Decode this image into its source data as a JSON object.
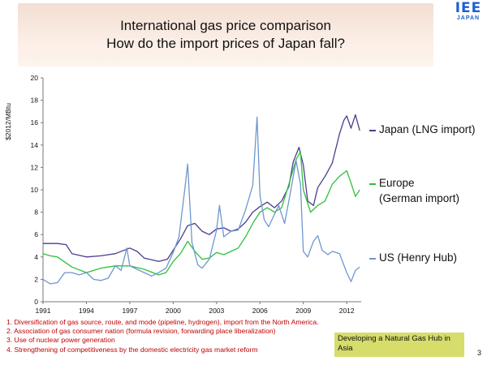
{
  "slide": {
    "title_line1": "International gas price comparison",
    "title_line2": "How do the import prices of Japan fall?",
    "logo_big": "IEE",
    "logo_small": "JAPAN",
    "notes": [
      "1. Diversification of gas source, route, and mode (pipeline, hydrogen), import from the North America.",
      "2. Association of gas consumer nation (formula revision, forwarding place liberalization)",
      "3. Use of nuclear power generation",
      "4. Strengthening of competitiveness by the domestic electricity gas market reform"
    ],
    "hub_box": "Developing a Natural Gas Hub in Asia",
    "page_number": "3"
  },
  "chart_data": {
    "type": "line",
    "title": "",
    "xlabel": "",
    "ylabel": "$2012/MBtu",
    "xlim": [
      1991,
      2013
    ],
    "ylim": [
      0,
      20
    ],
    "x_ticks": [
      1991,
      1994,
      1997,
      2000,
      2003,
      2006,
      2009,
      2012
    ],
    "y_ticks": [
      0,
      2,
      4,
      6,
      8,
      10,
      12,
      14,
      16,
      18,
      20
    ],
    "grid": false,
    "legend_position": "right",
    "series": [
      {
        "name": "Japan (LNG import)",
        "legend_lines": [
          "Japan (LNG import)"
        ],
        "color": "#4a3d8f",
        "x": [
          1991,
          1992,
          1992.6,
          1993,
          1994,
          1995,
          1996,
          1997,
          1997.5,
          1998,
          1999,
          1999.6,
          2000,
          2000.5,
          2001,
          2001.5,
          2002,
          2002.5,
          2003,
          2003.5,
          2004,
          2004.5,
          2005,
          2005.5,
          2006,
          2006.5,
          2007,
          2007.5,
          2008,
          2008.3,
          2008.7,
          2009,
          2009.3,
          2009.7,
          2010,
          2010.5,
          2011,
          2011.5,
          2011.8,
          2012,
          2012.3,
          2012.6,
          2012.9
        ],
        "y": [
          5.2,
          5.2,
          5.1,
          4.3,
          4.0,
          4.1,
          4.3,
          4.8,
          4.5,
          3.9,
          3.6,
          3.8,
          4.6,
          5.6,
          6.8,
          7.0,
          6.3,
          6.0,
          6.5,
          6.6,
          6.3,
          6.5,
          7.1,
          8.0,
          8.5,
          8.9,
          8.4,
          9.0,
          10.3,
          12.5,
          13.8,
          12.2,
          9.0,
          8.6,
          10.2,
          11.2,
          12.4,
          15.0,
          16.2,
          16.6,
          15.5,
          16.7,
          15.3
        ]
      },
      {
        "name": "Europe (German import)",
        "legend_lines": [
          "Europe",
          "(German import)"
        ],
        "color": "#2fbf3c",
        "x": [
          1991,
          1991.5,
          1992,
          1993,
          1994,
          1995,
          1996,
          1997,
          1998,
          1999,
          1999.5,
          2000,
          2000.5,
          2001,
          2001.5,
          2002,
          2002.5,
          2003,
          2003.5,
          2004,
          2004.5,
          2005,
          2005.5,
          2006,
          2006.5,
          2007,
          2007.5,
          2008,
          2008.5,
          2008.8,
          2009,
          2009.5,
          2010,
          2010.5,
          2011,
          2011.5,
          2012,
          2012.3,
          2012.6,
          2012.9
        ],
        "y": [
          4.3,
          4.1,
          4.0,
          3.1,
          2.6,
          3.0,
          3.2,
          3.2,
          2.9,
          2.4,
          2.6,
          3.6,
          4.3,
          5.4,
          4.5,
          3.8,
          3.9,
          4.4,
          4.2,
          4.5,
          4.8,
          5.8,
          7.0,
          8.0,
          8.4,
          8.0,
          8.4,
          10.5,
          12.7,
          13.4,
          10.0,
          8.0,
          8.6,
          9.0,
          10.5,
          11.2,
          11.7,
          10.6,
          9.4,
          10.0
        ]
      },
      {
        "name": "US (Henry Hub)",
        "legend_lines": [
          "US (Henry Hub)"
        ],
        "color": "#6e97cf",
        "x": [
          1991,
          1991.5,
          1992,
          1992.5,
          1993,
          1993.5,
          1994,
          1994.5,
          1995,
          1995.5,
          1996,
          1996.4,
          1996.8,
          1997,
          1997.5,
          1998,
          1998.5,
          1999,
          1999.5,
          2000,
          2000.4,
          2000.8,
          2001,
          2001.3,
          2001.7,
          2002,
          2002.5,
          2003,
          2003.2,
          2003.5,
          2004,
          2004.5,
          2005,
          2005.5,
          2005.8,
          2006,
          2006.3,
          2006.6,
          2007,
          2007.3,
          2007.7,
          2008,
          2008.5,
          2008.8,
          2009,
          2009.3,
          2009.7,
          2010,
          2010.3,
          2010.7,
          2011,
          2011.5,
          2012,
          2012.3,
          2012.6,
          2012.9
        ],
        "y": [
          2.0,
          1.6,
          1.7,
          2.6,
          2.6,
          2.4,
          2.6,
          2.0,
          1.9,
          2.1,
          3.2,
          2.8,
          4.8,
          3.2,
          2.9,
          2.6,
          2.3,
          2.6,
          3.0,
          4.4,
          5.8,
          10.0,
          12.3,
          5.3,
          3.3,
          3.0,
          3.8,
          6.4,
          8.6,
          5.8,
          6.3,
          6.4,
          8.2,
          10.4,
          16.5,
          9.5,
          7.3,
          6.7,
          7.8,
          8.6,
          7.0,
          9.0,
          12.6,
          10.5,
          4.5,
          4.0,
          5.4,
          5.9,
          4.6,
          4.2,
          4.5,
          4.3,
          2.6,
          1.8,
          2.8,
          3.1
        ]
      }
    ]
  }
}
